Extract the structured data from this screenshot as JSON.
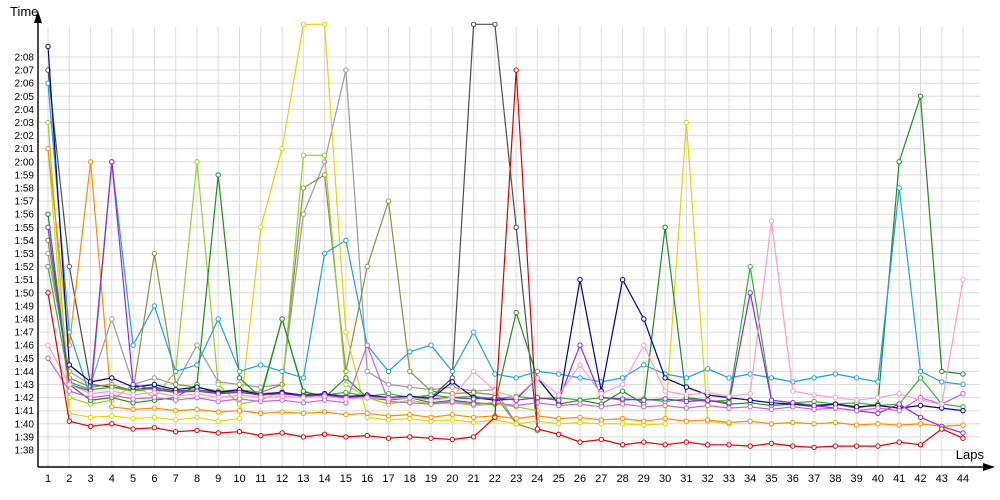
{
  "chart_data": {
    "type": "line",
    "title": "",
    "xlabel": "Laps",
    "ylabel": "Time",
    "legend": "none",
    "grid": true,
    "marker": "open-circle",
    "xlim": [
      1,
      44
    ],
    "ylim": [
      "1:38",
      "2:08"
    ],
    "y_base_seconds": 98,
    "y_ticks": [
      "1:38",
      "1:39",
      "1:40",
      "1:41",
      "1:42",
      "1:43",
      "1:44",
      "1:45",
      "1:46",
      "1:47",
      "1:48",
      "1:49",
      "1:50",
      "1:51",
      "1:52",
      "1:53",
      "1:54",
      "1:55",
      "1:56",
      "1:57",
      "1:58",
      "1:59",
      "2:00",
      "2:01",
      "2:02",
      "2:03",
      "2:04",
      "2:05",
      "2:06",
      "2:07",
      "2:08"
    ],
    "x": [
      1,
      2,
      3,
      4,
      5,
      6,
      7,
      8,
      9,
      10,
      11,
      12,
      13,
      14,
      15,
      16,
      17,
      18,
      19,
      20,
      21,
      22,
      23,
      24,
      25,
      26,
      27,
      28,
      29,
      30,
      31,
      32,
      33,
      34,
      35,
      36,
      37,
      38,
      39,
      40,
      41,
      42,
      43,
      44
    ],
    "series": [
      {
        "name": "gray",
        "color": "#9a9a9a",
        "values": [
          113,
          104,
          103,
          108,
          103,
          103.5,
          103,
          106,
          103.2,
          103,
          102.8,
          103,
          116,
          120,
          127,
          104,
          103,
          102.8,
          102.6,
          102.8,
          102.5,
          102.6,
          100,
          99.5,
          null,
          null,
          null,
          null,
          null,
          null,
          null,
          null,
          null,
          null,
          null,
          null,
          null,
          null,
          null,
          null,
          null,
          null,
          null,
          null
        ]
      },
      {
        "name": "darkgray",
        "color": "#4d4d4d",
        "values": [
          127,
          112,
          103,
          102.8,
          102.6,
          102.8,
          102.5,
          102.6,
          102.4,
          102.5,
          102.3,
          102.4,
          102.2,
          102.3,
          102.1,
          102.2,
          102,
          102.1,
          102,
          103.5,
          130.5,
          130.5,
          115,
          99.5,
          null,
          null,
          null,
          null,
          null,
          null,
          null,
          null,
          null,
          null,
          null,
          null,
          null,
          null,
          null,
          null,
          null,
          null,
          null,
          null
        ]
      },
      {
        "name": "olive",
        "color": "#8f8f3c",
        "values": [
          114,
          103.5,
          102.8,
          103,
          102.5,
          113,
          103,
          102.8,
          102.5,
          102.6,
          102.4,
          103,
          118,
          119,
          104,
          112,
          117,
          104,
          102.5,
          102.3,
          102.4,
          102.2,
          100,
          99.5,
          null,
          null,
          null,
          null,
          null,
          null,
          null,
          null,
          null,
          null,
          null,
          null,
          null,
          null,
          null,
          null,
          null,
          null,
          null,
          null
        ]
      },
      {
        "name": "yellowgreen",
        "color": "#9acd32",
        "values": [
          123,
          102,
          101.5,
          101.8,
          103,
          102,
          104,
          120,
          103,
          101.5,
          101.8,
          102.5,
          120.5,
          120.5,
          103,
          102,
          101.5,
          101.8,
          101.5,
          101.6,
          101.4,
          101.5,
          101.3,
          101,
          null,
          null,
          null,
          null,
          null,
          null,
          null,
          null,
          null,
          null,
          null,
          null,
          null,
          null,
          null,
          null,
          null,
          null,
          null,
          null
        ]
      },
      {
        "name": "yellow",
        "color": "#e3d400",
        "values": [
          121,
          100.8,
          100.5,
          100.6,
          100.4,
          100.5,
          100.3,
          100.5,
          100.2,
          100.4,
          115,
          121,
          130.5,
          130.5,
          107,
          100.5,
          100.3,
          100.4,
          100.2,
          100.3,
          100.1,
          100.3,
          100,
          100.2,
          100,
          100.1,
          100,
          100,
          99.9,
          100,
          123,
          100.2,
          100,
          null,
          null,
          null,
          null,
          null,
          null,
          null,
          null,
          null,
          null,
          null
        ]
      },
      {
        "name": "orange",
        "color": "#ff8c00",
        "values": [
          121,
          106,
          120,
          101.3,
          101.1,
          101.2,
          101,
          101.1,
          100.9,
          101,
          100.8,
          100.9,
          100.8,
          100.9,
          100.7,
          100.8,
          100.6,
          100.7,
          100.5,
          100.7,
          100.5,
          100.6,
          100.4,
          100.6,
          100.4,
          100.5,
          100.3,
          100.4,
          100.2,
          100.4,
          100.2,
          100.3,
          100.1,
          100.2,
          100,
          100.1,
          100,
          100.1,
          99.9,
          100,
          99.9,
          100,
          99.8,
          99.9
        ]
      },
      {
        "name": "green",
        "color": "#2db52d",
        "values": [
          112,
          103.2,
          102.6,
          102.8,
          102.5,
          102.7,
          102.4,
          102.6,
          102.3,
          102.5,
          102.2,
          108,
          102.4,
          102.2,
          102.4,
          102.1,
          102.3,
          102,
          102.2,
          102,
          102.1,
          101.9,
          102.1,
          101.9,
          102,
          101.8,
          102,
          101.8,
          101.9,
          101.7,
          101.9,
          101.7,
          101.8,
          112,
          101.8,
          101.6,
          101.7,
          101.5,
          101.6,
          101.4,
          101.5,
          103.5,
          101.5,
          101.3
        ]
      },
      {
        "name": "darkgreen",
        "color": "#1e8c1e",
        "values": [
          116,
          103,
          101.8,
          102,
          101.6,
          101.8,
          102,
          103,
          119,
          103.5,
          102,
          108,
          102.5,
          102,
          103.5,
          102,
          101.8,
          102,
          101.6,
          101.8,
          101.6,
          101.5,
          108.5,
          103.5,
          101.5,
          101.8,
          101.5,
          102.5,
          101.5,
          115,
          102,
          101.8,
          101.5,
          101.6,
          101.4,
          101.5,
          101.3,
          101.5,
          101.2,
          101.5,
          120,
          125,
          104,
          103.8
        ]
      },
      {
        "name": "cyan",
        "color": "#1f9fe0",
        "values": [
          126,
          107,
          102,
          120,
          106,
          109,
          104,
          104.5,
          108,
          104,
          104.5,
          104,
          103.5,
          113,
          114,
          106,
          104,
          105.5,
          106,
          104,
          107,
          103.8,
          103.5,
          104,
          103.8,
          103.5,
          103.2,
          103.5,
          104.5,
          103.8,
          103.5,
          104.2,
          103.5,
          103.8,
          103.5,
          103.2,
          103.5,
          103.8,
          103.5,
          103.2,
          118,
          104,
          103.2,
          103
        ]
      },
      {
        "name": "navy",
        "color": "#00008b",
        "values": [
          128.8,
          104.5,
          103.2,
          103.5,
          102.8,
          103,
          102.6,
          102.8,
          102.4,
          102.6,
          102.2,
          102.4,
          102.1,
          102.3,
          102,
          102.2,
          102,
          102.1,
          101.9,
          103.2,
          102,
          101.8,
          101.9,
          103.5,
          101.5,
          111,
          102.5,
          111,
          108,
          103.5,
          102.8,
          102.2,
          102,
          101.8,
          101.6,
          101.5,
          101.4,
          101.5,
          101.3,
          101.4,
          101.2,
          101.4,
          101.2,
          101
        ]
      },
      {
        "name": "purple",
        "color": "#8a2be2",
        "values": [
          115,
          103,
          102.5,
          120,
          103,
          102.6,
          102.4,
          102.5,
          102.3,
          102.4,
          102.2,
          102.3,
          102.1,
          102.2,
          102,
          102.1,
          102,
          102,
          101.9,
          102,
          101.9,
          102,
          101.8,
          102,
          101.8,
          106,
          102,
          101.9,
          101.8,
          101.9,
          101.7,
          101.8,
          101.6,
          110,
          101.8,
          101.6,
          101.4,
          101.2,
          101,
          100.8,
          101.5,
          100.5,
          99.8,
          99.3
        ]
      },
      {
        "name": "violet",
        "color": "#cf5fd4",
        "values": [
          105,
          102.5,
          102,
          102.2,
          101.9,
          102,
          101.8,
          102,
          101.7,
          101.9,
          101.7,
          101.8,
          101.6,
          101.8,
          101.6,
          106,
          101.7,
          101.6,
          101.5,
          101.7,
          101.5,
          101.6,
          101.4,
          101.6,
          101.4,
          101.5,
          101.3,
          101.5,
          101.3,
          101.4,
          101.2,
          101.4,
          101.2,
          101.3,
          101.1,
          101.3,
          101.1,
          101.2,
          101,
          101.2,
          101,
          102,
          101.5,
          102.3
        ]
      },
      {
        "name": "pink",
        "color": "#ff9ccb",
        "values": [
          106,
          103,
          102.3,
          102.5,
          102.2,
          102.4,
          102.1,
          102.3,
          102,
          102.2,
          102,
          102.1,
          102,
          102.1,
          101.9,
          102,
          101.9,
          102,
          101.8,
          102,
          104,
          102.5,
          102,
          103.5,
          102.2,
          104.5,
          102.3,
          103,
          106,
          102.5,
          102.2,
          102.4,
          102.1,
          102.3,
          115.5,
          102.5,
          102.2,
          102,
          101.8,
          102,
          102.3,
          101.8,
          101.5,
          111
        ]
      },
      {
        "name": "red",
        "color": "#dd0000",
        "values": [
          110,
          100.2,
          99.8,
          100,
          99.6,
          99.7,
          99.4,
          99.5,
          99.3,
          99.4,
          99.1,
          99.3,
          99,
          99.2,
          99,
          99.1,
          98.9,
          99,
          98.9,
          98.8,
          99,
          100.5,
          127,
          99.6,
          99.2,
          98.6,
          98.8,
          98.4,
          98.6,
          98.4,
          98.6,
          98.4,
          98.4,
          98.3,
          98.5,
          98.3,
          98.2,
          98.3,
          98.3,
          98.3,
          98.6,
          98.4,
          99.6,
          98.9
        ]
      }
    ]
  }
}
